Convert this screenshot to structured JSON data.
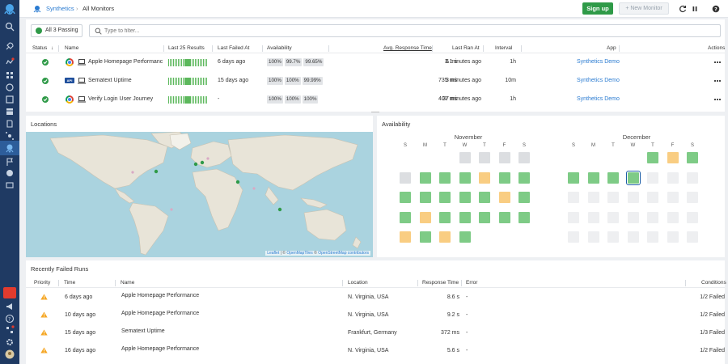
{
  "breadcrumb": {
    "section": "Synthetics",
    "page": "All Monitors"
  },
  "toolbar": {
    "signup": "Sign up",
    "new_monitor": "+ New Monitor"
  },
  "filter": {
    "passing_label": "All 3 Passing",
    "placeholder": "Type to filter..."
  },
  "monitors": {
    "columns": [
      "Status",
      "Name",
      "Last 25 Results",
      "Last Failed At",
      "Availability",
      "Avg. Response Time",
      "Last Ran At",
      "Interval",
      "App",
      "Actions"
    ],
    "rows": [
      {
        "name": "Apple Homepage Performanc",
        "type": "browser",
        "last_failed": "6 days ago",
        "availability": [
          "100%",
          "99.7%",
          "99.65%"
        ],
        "avg_response": "3.1 s",
        "last_ran": "6 minutes ago",
        "interval": "1h",
        "app": "Synthetics Demo"
      },
      {
        "name": "Sematext Uptime",
        "type": "api",
        "last_failed": "15 days ago",
        "availability": [
          "100%",
          "100%",
          "99.99%"
        ],
        "avg_response": "735 ms",
        "last_ran": "3 minutes ago",
        "interval": "10m",
        "app": "Synthetics Demo"
      },
      {
        "name": "Verify Login User Journey",
        "type": "browser",
        "last_failed": "-",
        "availability": [
          "100%",
          "100%",
          "100%"
        ],
        "avg_response": "407 ms",
        "last_ran": "37 minutes ago",
        "interval": "1h",
        "app": "Synthetics Demo"
      }
    ]
  },
  "locations": {
    "title": "Locations",
    "attribution": {
      "leaflet": "Leaflet",
      "sep1": " | © ",
      "openmaptiles": "OpenMapTiles",
      "sep2": " © ",
      "osm": "OpenStreetMap contributors"
    }
  },
  "availability": {
    "title": "Availability",
    "dow": [
      "S",
      "M",
      "T",
      "W",
      "T",
      "F",
      "S"
    ],
    "months": [
      {
        "name": "November",
        "weeks": [
          [
            "",
            "",
            "",
            "d",
            "d",
            "d",
            "d"
          ],
          [
            "d",
            "g",
            "g",
            "g",
            "y",
            "g",
            "g"
          ],
          [
            "g",
            "g",
            "g",
            "g",
            "g",
            "y",
            "g"
          ],
          [
            "g",
            "y",
            "g",
            "g",
            "g",
            "g",
            "g"
          ],
          [
            "y",
            "g",
            "y",
            "g",
            "",
            "",
            ""
          ]
        ]
      },
      {
        "name": "December",
        "weeks": [
          [
            "",
            "",
            "",
            "",
            "g",
            "y",
            "g"
          ],
          [
            "g",
            "g",
            "g",
            "s",
            "e",
            "e",
            "e"
          ],
          [
            "e",
            "e",
            "e",
            "e",
            "e",
            "e",
            "e"
          ],
          [
            "e",
            "e",
            "e",
            "e",
            "e",
            "e",
            "e"
          ],
          [
            "e",
            "e",
            "e",
            "e",
            "e",
            "e",
            "e"
          ]
        ]
      }
    ]
  },
  "failed_runs": {
    "title": "Recently Failed Runs",
    "columns": [
      "Priority",
      "Time",
      "Name",
      "Location",
      "Response Time",
      "Error",
      "Conditions"
    ],
    "rows": [
      {
        "time": "6 days ago",
        "name": "Apple Homepage Performance",
        "location": "N. Virginia, USA",
        "response": "8.6 s",
        "error": "-",
        "conditions": "1/2 Failed"
      },
      {
        "time": "10 days ago",
        "name": "Apple Homepage Performance",
        "location": "N. Virginia, USA",
        "response": "9.2 s",
        "error": "-",
        "conditions": "1/2 Failed"
      },
      {
        "time": "15 days ago",
        "name": "Sematext Uptime",
        "location": "Frankfurt, Germany",
        "response": "372 ms",
        "error": "-",
        "conditions": "1/3 Failed"
      },
      {
        "time": "16 days ago",
        "name": "Apple Homepage Performance",
        "location": "N. Virginia, USA",
        "response": "5.6 s",
        "error": "-",
        "conditions": "1/2 Failed"
      }
    ]
  },
  "colors": {
    "sidebar": "#1f3a63",
    "accent": "#2a7bd1",
    "success": "#2f9a48",
    "warning": "#f5a623"
  }
}
